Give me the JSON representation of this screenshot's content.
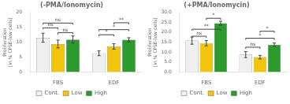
{
  "chart_data": [
    {
      "type": "bar",
      "title": "(-PMA/Ionomycin)",
      "ylabel": "Proliferation\n[in % CFSE-low cells]",
      "categories": [
        "FBS",
        "EDF"
      ],
      "series": [
        {
          "name": "Cont.",
          "color": "#F0F0F0",
          "values": [
            11.5,
            6.3
          ],
          "errors": [
            1.5,
            0.8
          ]
        },
        {
          "name": "Low",
          "color": "#F2C40C",
          "values": [
            9.4,
            8.6
          ],
          "errors": [
            1.3,
            0.9
          ]
        },
        {
          "name": "High",
          "color": "#2D9A2D",
          "values": [
            10.9,
            10.8
          ],
          "errors": [
            1.2,
            0.7
          ]
        }
      ],
      "ylim": [
        0,
        20
      ],
      "yticks": [
        0,
        5,
        10,
        15,
        20
      ],
      "grid": false,
      "legend": "bottom",
      "annotations": [
        {
          "category": "FBS",
          "from": "Low",
          "to": "High",
          "label": "ns",
          "y": 13.2
        },
        {
          "category": "FBS",
          "from": "Cont.",
          "to": "Low",
          "label": "ns",
          "y": 14.8
        },
        {
          "category": "FBS",
          "from": "Cont.",
          "to": "High",
          "label": "ns",
          "y": 16.4
        },
        {
          "category": "EDF",
          "from": "Cont.",
          "to": "Low",
          "label": "*",
          "y": 12.5
        },
        {
          "category": "EDF",
          "from": "Cont.",
          "to": "High",
          "label": "*",
          "y": 14.2
        },
        {
          "category": "EDF",
          "from": "Low",
          "to": "High",
          "label": "**",
          "y": 16.5
        }
      ]
    },
    {
      "type": "bar",
      "title": "(+PMA/Ionomycin)",
      "ylabel": "Proliferation\n[in % CFSE-low cells]",
      "categories": [
        "FBS",
        "EDF"
      ],
      "series": [
        {
          "name": "Cont.",
          "color": "#F0F0F0",
          "values": [
            15.8,
            8.8
          ],
          "errors": [
            1.8,
            1.5
          ]
        },
        {
          "name": "Low",
          "color": "#F2C40C",
          "values": [
            14.5,
            7.5
          ],
          "errors": [
            1.3,
            0.9
          ]
        },
        {
          "name": "High",
          "color": "#2D9A2D",
          "values": [
            24.5,
            13.8
          ],
          "errors": [
            1.0,
            0.8
          ]
        }
      ],
      "ylim": [
        0,
        30
      ],
      "yticks": [
        {
          "value": 0,
          "label": "0.0"
        },
        {
          "value": 5,
          "label": "5.0"
        },
        {
          "value": 10,
          "label": "10.0"
        },
        {
          "value": 15,
          "label": "15.0"
        },
        {
          "value": 20,
          "label": "20.0"
        },
        {
          "value": 25,
          "label": "25.0"
        },
        {
          "value": 30,
          "label": "30.0"
        }
      ],
      "grid": false,
      "legend": "bottom",
      "annotations": [
        {
          "category": "FBS",
          "from": "Cont.",
          "to": "Low",
          "label": "ns",
          "y": 18.0
        },
        {
          "category": "FBS",
          "from": "Cont.",
          "to": "High",
          "label": "**",
          "y": 21.5
        },
        {
          "category": "FBS",
          "from": "Low",
          "to": "High",
          "label": "*",
          "y": 27.0
        },
        {
          "category": "EDF",
          "from": "Cont.",
          "to": "Low",
          "label": "ns",
          "y": 12.5
        },
        {
          "category": "EDF",
          "from": "Cont.",
          "to": "High",
          "label": "*",
          "y": 17.0
        },
        {
          "category": "EDF",
          "from": "Low",
          "to": "High",
          "label": "*",
          "y": 20.5
        }
      ]
    }
  ]
}
